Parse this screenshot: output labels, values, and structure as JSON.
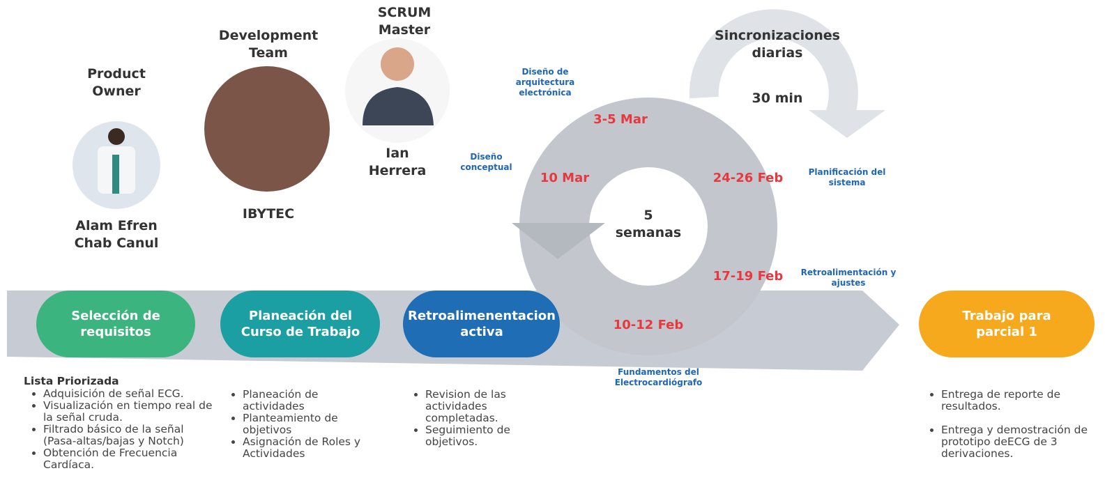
{
  "roles": [
    {
      "title": "Product Owner",
      "name": "Alam Efren Chab Canul"
    },
    {
      "title": "Development Team",
      "name": "IBYTEC"
    },
    {
      "title": "SCRUM Master",
      "name": "Ian Herrera"
    }
  ],
  "daily": {
    "title": "Sincronizaciones diarias",
    "duration": "30 min"
  },
  "cycle": {
    "duration": "5 semanas",
    "sprints": [
      {
        "date": "3-5 Mar",
        "label": "Diseño de arquitectura electrónica"
      },
      {
        "date": "10 Mar",
        "label": "Diseño conceptual"
      },
      {
        "date": "24-26 Feb",
        "label": "Planificación del sistema"
      },
      {
        "date": "17-19 Feb",
        "label": "Retroalimentación y ajustes"
      },
      {
        "date": "10-12 Feb",
        "label": "Fundamentos del Electrocardiógrafo"
      }
    ]
  },
  "stages": [
    {
      "title": "Selección de requisitos",
      "heading": "Lista Priorizada",
      "items": [
        "Adquisición de señal ECG.",
        "Visualización en tiempo real de la señal cruda.",
        "Filtrado básico de la señal (Pasa-altas/bajas y Notch)",
        "Obtención de Frecuencia Cardíaca."
      ]
    },
    {
      "title": "Planeación del Curso de Trabajo",
      "items": [
        "Planeación de actividades",
        "Planteamiento de objetivos",
        "Asignación de Roles y Actividades"
      ]
    },
    {
      "title": "Retroalimenentacion activa",
      "items": [
        "Revision de las actividades completadas.",
        "Seguimiento de objetivos."
      ]
    },
    {
      "title": "Trabajo para parcial 1",
      "items": [
        "Entrega de reporte de resultados.",
        "Entrega y demostración de prototipo deECG de 3 derivaciones."
      ]
    }
  ]
}
